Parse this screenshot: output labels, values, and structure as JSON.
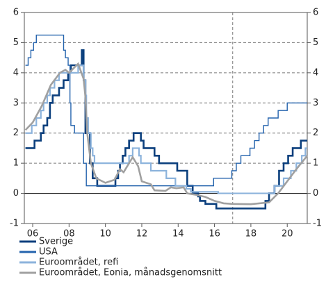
{
  "chart_data": {
    "type": "line",
    "xlim": [
      2005.54,
      2021.1
    ],
    "ylim": [
      -1,
      6
    ],
    "y2lim": [
      -1,
      6
    ],
    "yticks": [
      -1,
      0,
      1,
      2,
      3,
      4,
      5,
      6
    ],
    "y2ticks": [
      -1,
      0,
      1,
      2,
      3,
      4,
      5,
      6
    ],
    "xticks": [
      {
        "value": 2006,
        "label": "06"
      },
      {
        "value": 2008,
        "label": "08"
      },
      {
        "value": 2010,
        "label": "10"
      },
      {
        "value": 2012,
        "label": "12"
      },
      {
        "value": 2014,
        "label": "14"
      },
      {
        "value": 2016,
        "label": "16"
      },
      {
        "value": 2018,
        "label": "18"
      },
      {
        "value": 2020,
        "label": "20"
      }
    ],
    "grid": true,
    "reference_x": 2017,
    "series": [
      {
        "name": "Sverige",
        "color": "#0b3f7d",
        "step": true,
        "width": 2.6,
        "x": [
          2005.6,
          2006.1,
          2006.45,
          2006.6,
          2006.8,
          2006.95,
          2007.1,
          2007.45,
          2007.7,
          2007.95,
          2008.1,
          2008.7,
          2008.8,
          2008.9,
          2009.0,
          2009.15,
          2009.3,
          2009.55,
          2010.55,
          2010.7,
          2010.8,
          2010.95,
          2011.1,
          2011.3,
          2011.55,
          2011.95,
          2012.1,
          2012.7,
          2012.95,
          2013.95,
          2014.5,
          2014.8,
          2015.1,
          2015.2,
          2015.5,
          2016.1,
          2018.8,
          2019.0,
          2019.3,
          2019.55,
          2019.8,
          2020.05,
          2020.3,
          2020.75,
          2021.1
        ],
        "values": [
          1.5,
          1.75,
          2.0,
          2.25,
          2.5,
          3.0,
          3.25,
          3.5,
          3.75,
          4.0,
          4.25,
          4.75,
          3.75,
          2.0,
          2.0,
          1.0,
          0.5,
          0.25,
          0.5,
          0.75,
          1.0,
          1.25,
          1.5,
          1.75,
          2.0,
          1.75,
          1.5,
          1.25,
          1.0,
          0.75,
          0.25,
          0.0,
          -0.1,
          -0.25,
          -0.35,
          -0.5,
          -0.25,
          0.0,
          0.25,
          0.75,
          1.0,
          1.25,
          1.5,
          1.75,
          1.75
        ]
      },
      {
        "name": "USA",
        "color": "#2463ad",
        "step": true,
        "width": 1.4,
        "x": [
          2005.6,
          2005.75,
          2005.9,
          2006.05,
          2006.2,
          2006.4,
          2007.7,
          2007.8,
          2007.95,
          2008.05,
          2008.1,
          2008.3,
          2008.8,
          2008.95,
          2015.95,
          2016.95,
          2017.2,
          2017.45,
          2017.95,
          2018.2,
          2018.45,
          2018.7,
          2018.95,
          2019.5,
          2020.0,
          2021.1
        ],
        "values": [
          4.25,
          4.5,
          4.75,
          5.0,
          5.25,
          5.25,
          4.75,
          4.5,
          4.25,
          3.0,
          2.25,
          2.0,
          1.0,
          0.25,
          0.5,
          0.75,
          1.0,
          1.25,
          1.5,
          1.75,
          2.0,
          2.25,
          2.5,
          2.75,
          3.0,
          3.0
        ]
      },
      {
        "name": "Euroområdet, refi",
        "color": "#8cb3dc",
        "step": true,
        "width": 2.2,
        "x": [
          2005.6,
          2005.95,
          2006.2,
          2006.45,
          2006.6,
          2006.8,
          2006.95,
          2007.2,
          2007.45,
          2008.5,
          2008.8,
          2008.9,
          2008.95,
          2009.05,
          2009.2,
          2009.3,
          2009.4,
          2011.3,
          2011.5,
          2011.85,
          2011.95,
          2012.5,
          2013.35,
          2013.85,
          2014.45,
          2014.7,
          2016.2,
          2019.3,
          2019.8,
          2020.2,
          2020.5,
          2020.8,
          2021.0,
          2021.1
        ],
        "values": [
          2.0,
          2.25,
          2.5,
          2.75,
          3.0,
          3.25,
          3.5,
          3.75,
          4.0,
          4.25,
          3.75,
          3.25,
          2.5,
          2.0,
          1.5,
          1.25,
          1.0,
          1.25,
          1.5,
          1.25,
          1.0,
          0.75,
          0.5,
          0.25,
          0.15,
          0.05,
          0.0,
          0.25,
          0.5,
          0.75,
          1.0,
          1.25,
          1.5,
          1.5
        ]
      },
      {
        "name": "Euroområdet, Eonia, månadsgenomsnitt",
        "color": "#a0a0a0",
        "step": false,
        "width": 2.6,
        "x": [
          2005.6,
          2006.0,
          2006.5,
          2007.0,
          2007.5,
          2007.8,
          2008.0,
          2008.5,
          2008.8,
          2008.9,
          2009.0,
          2009.2,
          2009.5,
          2010.0,
          2010.5,
          2010.8,
          2011.0,
          2011.3,
          2011.5,
          2011.8,
          2012.0,
          2012.5,
          2012.7,
          2013.3,
          2013.6,
          2013.9,
          2014.3,
          2014.5,
          2015.0,
          2015.5,
          2016.0,
          2016.5,
          2017.0,
          2018.0,
          2019.0,
          2019.5,
          2020.0,
          2020.5,
          2021.1
        ],
        "values": [
          2.1,
          2.35,
          2.9,
          3.6,
          4.0,
          4.1,
          4.0,
          4.3,
          3.8,
          3.2,
          2.0,
          1.0,
          0.5,
          0.35,
          0.45,
          0.8,
          0.7,
          1.0,
          1.2,
          0.9,
          0.4,
          0.3,
          0.1,
          0.08,
          0.2,
          0.17,
          0.2,
          0.0,
          -0.05,
          -0.12,
          -0.25,
          -0.33,
          -0.35,
          -0.36,
          -0.3,
          0.0,
          0.4,
          0.8,
          1.25
        ]
      }
    ]
  }
}
